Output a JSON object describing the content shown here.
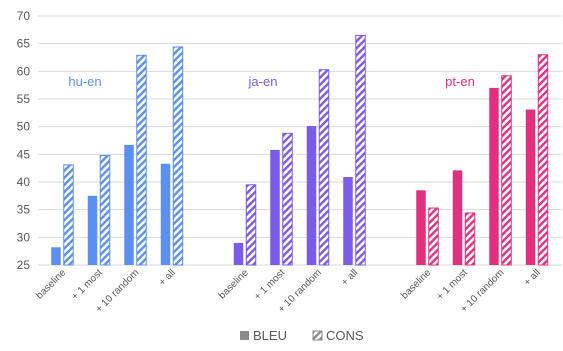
{
  "chart_data": {
    "type": "bar",
    "ylim": [
      25,
      70
    ],
    "yticks": [
      25,
      30,
      35,
      40,
      45,
      50,
      55,
      60,
      65,
      70
    ],
    "grid": true,
    "legend_position": "bottom",
    "legend": [
      {
        "label": "BLEU",
        "pattern": "solid"
      },
      {
        "label": "CONS",
        "pattern": "hatched"
      }
    ],
    "groups": [
      {
        "name": "hu-en",
        "color": "#5B8FF0",
        "categories": [
          "baseline",
          "+ 1 most",
          "+ 10 random",
          "+ all"
        ],
        "series": [
          {
            "name": "BLEU",
            "values": [
              28.2,
              37.5,
              46.7,
              43.3
            ]
          },
          {
            "name": "CONS",
            "values": [
              43.1,
              44.8,
              62.9,
              64.4
            ]
          }
        ]
      },
      {
        "name": "ja-en",
        "color": "#7B5BE8",
        "categories": [
          "baseline",
          "+ 1 most",
          "+ 10 random",
          "+ all"
        ],
        "series": [
          {
            "name": "BLEU",
            "values": [
              29.0,
              45.8,
              50.1,
              40.9
            ]
          },
          {
            "name": "CONS",
            "values": [
              39.5,
              48.8,
              60.3,
              66.5
            ]
          }
        ]
      },
      {
        "name": "pt-en",
        "color": "#E0307E",
        "categories": [
          "baseline",
          "+ 1 most",
          "+ 10 random",
          "+ all"
        ],
        "series": [
          {
            "name": "BLEU",
            "values": [
              38.5,
              42.1,
              57.0,
              53.1
            ]
          },
          {
            "name": "CONS",
            "values": [
              35.3,
              34.4,
              59.2,
              63.0
            ]
          }
        ]
      }
    ]
  }
}
